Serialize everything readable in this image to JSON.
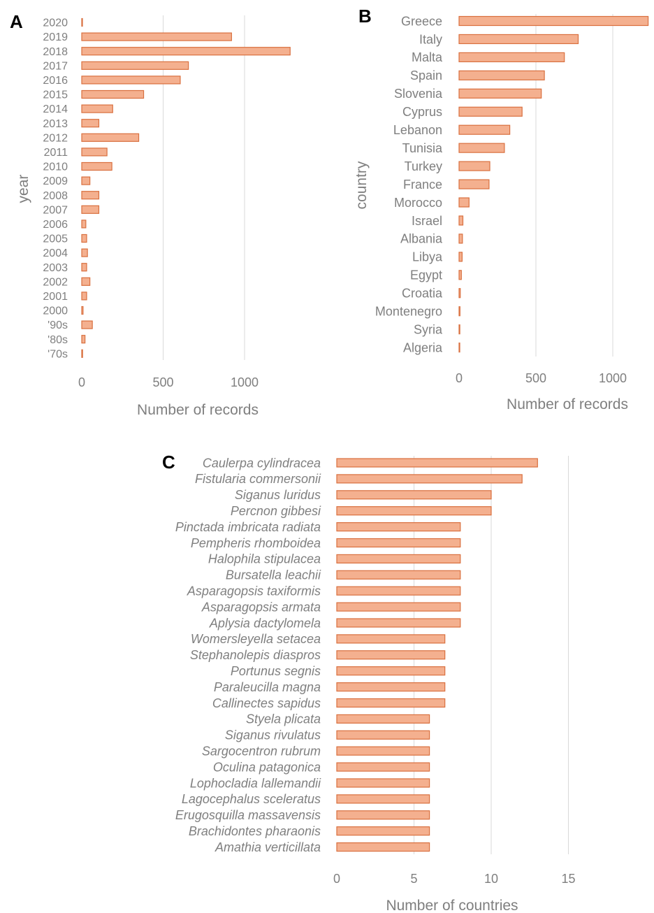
{
  "colors": {
    "bar_fill": "#f4b08f",
    "bar_stroke": "#d9703f",
    "grid": "#d9d9d9",
    "text": "#7f7f7f"
  },
  "chart_data": [
    {
      "panel": "A",
      "type": "bar",
      "orientation": "horizontal",
      "categories": [
        "2020",
        "2019",
        "2018",
        "2017",
        "2016",
        "2015",
        "2014",
        "2013",
        "2012",
        "2011",
        "2010",
        "2009",
        "2008",
        "2007",
        "2006",
        "2005",
        "2004",
        "2003",
        "2002",
        "2001",
        "2000",
        "'90s",
        "'80s",
        "'70s"
      ],
      "values": [
        3,
        920,
        1280,
        655,
        605,
        380,
        190,
        105,
        350,
        155,
        185,
        50,
        105,
        105,
        25,
        30,
        35,
        30,
        50,
        30,
        8,
        65,
        20,
        5
      ],
      "xlabel": "Number of records",
      "ylabel": "year",
      "xlim": [
        0,
        1300
      ],
      "xticks": [
        0,
        500,
        1000
      ],
      "grid": true
    },
    {
      "panel": "B",
      "type": "bar",
      "orientation": "horizontal",
      "categories": [
        "Greece",
        "Italy",
        "Malta",
        "Spain",
        "Slovenia",
        "Cyprus",
        "Lebanon",
        "Tunisia",
        "Turkey",
        "France",
        "Morocco",
        "Israel",
        "Albania",
        "Libya",
        "Egypt",
        "Croatia",
        "Montenegro",
        "Syria",
        "Algeria"
      ],
      "values": [
        1230,
        775,
        685,
        555,
        535,
        410,
        330,
        295,
        200,
        195,
        65,
        25,
        22,
        20,
        15,
        8,
        6,
        5,
        2
      ],
      "xlabel": "Number of records",
      "ylabel": "country",
      "xlim": [
        0,
        1230
      ],
      "xticks": [
        0,
        500,
        1000
      ],
      "grid": true
    },
    {
      "panel": "C",
      "type": "bar",
      "orientation": "horizontal",
      "categories": [
        "Caulerpa cylindracea",
        "Fistularia commersonii",
        "Siganus luridus",
        "Percnon gibbesi",
        "Pinctada imbricata radiata",
        "Pempheris rhomboidea",
        "Halophila stipulacea",
        "Bursatella leachii",
        "Asparagopsis taxiformis",
        "Asparagopsis armata",
        "Aplysia dactylomela",
        "Womersleyella setacea",
        "Stephanolepis diaspros",
        "Portunus segnis",
        "Paraleucilla magna",
        "Callinectes sapidus",
        "Styela plicata",
        "Siganus rivulatus",
        "Sargocentron rubrum",
        "Oculina patagonica",
        "Lophocladia lallemandii",
        "Lagocephalus sceleratus",
        "Erugosquilla massavensis",
        "Brachidontes pharaonis",
        "Amathia verticillata"
      ],
      "values": [
        13,
        12,
        10,
        10,
        8,
        8,
        8,
        8,
        8,
        8,
        8,
        7,
        7,
        7,
        7,
        7,
        6,
        6,
        6,
        6,
        6,
        6,
        6,
        6,
        6
      ],
      "xlabel": "Number of countries",
      "ylabel": "",
      "xlim": [
        0,
        19
      ],
      "xticks": [
        0,
        5,
        10,
        15
      ],
      "grid": true
    }
  ]
}
